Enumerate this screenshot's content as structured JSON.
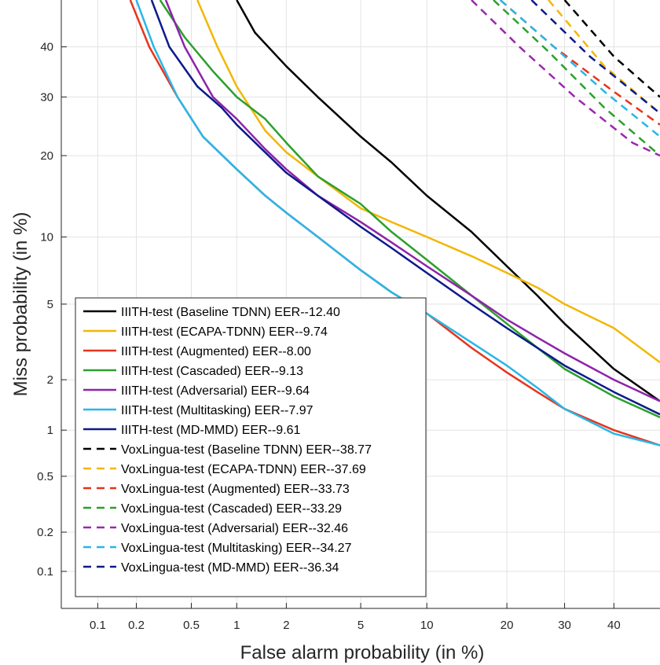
{
  "chart_data": {
    "type": "line",
    "plot_kind": "DET curve",
    "xlabel": "False alarm probability (in %)",
    "ylabel": "Miss probability (in %)",
    "x_scale": "probit",
    "y_scale": "probit",
    "xlim": [
      0.05,
      50
    ],
    "ylim": [
      0.05,
      50
    ],
    "x_ticks": [
      0.1,
      0.2,
      0.5,
      1,
      2,
      5,
      10,
      20,
      30,
      40
    ],
    "x_tick_labels": [
      "0.1",
      "0.2",
      "0.5",
      "1",
      "2",
      "5",
      "10",
      "20",
      "30",
      "40"
    ],
    "y_ticks": [
      0.1,
      0.2,
      0.5,
      1,
      2,
      5,
      10,
      20,
      30,
      40
    ],
    "y_tick_labels": [
      "0.1",
      "0.2",
      "0.5",
      "1",
      "2",
      "5",
      "10",
      "20",
      "30",
      "40"
    ],
    "grid": true,
    "legend_position": "bottom-left",
    "series": [
      {
        "name": "IIITH-test (Baseline TDNN) EER--12.40",
        "color": "#000000",
        "dash": false,
        "points": [
          [
            1,
            50
          ],
          [
            1.3,
            43
          ],
          [
            2,
            36
          ],
          [
            3,
            30
          ],
          [
            5,
            23
          ],
          [
            7,
            19
          ],
          [
            10,
            14.5
          ],
          [
            15,
            10.5
          ],
          [
            20,
            7.5
          ],
          [
            25,
            5.5
          ],
          [
            30,
            4
          ],
          [
            40,
            2.3
          ],
          [
            50,
            1.5
          ]
        ]
      },
      {
        "name": "IIITH-test (ECAPA-TDNN) EER--9.74",
        "color": "#f2b705",
        "dash": false,
        "points": [
          [
            0.55,
            50
          ],
          [
            0.75,
            40
          ],
          [
            1,
            32
          ],
          [
            1.5,
            24
          ],
          [
            2,
            20.5
          ],
          [
            3,
            17
          ],
          [
            5,
            13
          ],
          [
            7,
            11.5
          ],
          [
            10,
            10
          ],
          [
            15,
            8.3
          ],
          [
            20,
            7
          ],
          [
            25,
            6
          ],
          [
            30,
            5
          ],
          [
            40,
            3.8
          ],
          [
            50,
            2.5
          ]
        ]
      },
      {
        "name": "IIITH-test (Augmented) EER--8.00",
        "color": "#e8341c",
        "dash": false,
        "points": [
          [
            0.18,
            50
          ],
          [
            0.25,
            40
          ],
          [
            0.4,
            30
          ],
          [
            0.6,
            23
          ],
          [
            1,
            18
          ],
          [
            1.5,
            14.5
          ],
          [
            2,
            12.5
          ],
          [
            3,
            10
          ],
          [
            5,
            7.2
          ],
          [
            7,
            5.7
          ],
          [
            10,
            4.5
          ],
          [
            15,
            3
          ],
          [
            20,
            2.2
          ],
          [
            25,
            1.7
          ],
          [
            30,
            1.35
          ],
          [
            40,
            1.0
          ],
          [
            50,
            0.8
          ]
        ]
      },
      {
        "name": "IIITH-test (Cascaded) EER--9.13",
        "color": "#2ca02c",
        "dash": false,
        "points": [
          [
            0.3,
            50
          ],
          [
            0.45,
            42
          ],
          [
            0.7,
            35
          ],
          [
            1,
            30
          ],
          [
            1.5,
            26
          ],
          [
            2,
            22
          ],
          [
            3,
            17
          ],
          [
            5,
            13.5
          ],
          [
            7,
            10.5
          ],
          [
            10,
            8
          ],
          [
            15,
            5.5
          ],
          [
            20,
            4
          ],
          [
            25,
            3
          ],
          [
            30,
            2.3
          ],
          [
            40,
            1.6
          ],
          [
            50,
            1.2
          ]
        ]
      },
      {
        "name": "IIITH-test (Adversarial) EER--9.64",
        "color": "#8e24aa",
        "dash": false,
        "points": [
          [
            0.33,
            50
          ],
          [
            0.45,
            40
          ],
          [
            0.7,
            30
          ],
          [
            1,
            26
          ],
          [
            1.5,
            21
          ],
          [
            2,
            18
          ],
          [
            3,
            14.5
          ],
          [
            5,
            11.5
          ],
          [
            7,
            9.5
          ],
          [
            10,
            7.5
          ],
          [
            15,
            5.5
          ],
          [
            20,
            4.2
          ],
          [
            25,
            3.4
          ],
          [
            30,
            2.8
          ],
          [
            40,
            2.0
          ],
          [
            50,
            1.5
          ]
        ]
      },
      {
        "name": "IIITH-test (Multitasking) EER--7.97",
        "color": "#29b6e8",
        "dash": false,
        "points": [
          [
            0.2,
            50
          ],
          [
            0.27,
            40
          ],
          [
            0.4,
            30
          ],
          [
            0.6,
            23
          ],
          [
            1,
            18
          ],
          [
            1.5,
            14.5
          ],
          [
            2,
            12.5
          ],
          [
            3,
            10
          ],
          [
            5,
            7.2
          ],
          [
            7,
            5.7
          ],
          [
            10,
            4.5
          ],
          [
            15,
            3.2
          ],
          [
            20,
            2.4
          ],
          [
            25,
            1.8
          ],
          [
            30,
            1.35
          ],
          [
            40,
            0.95
          ],
          [
            50,
            0.8
          ]
        ]
      },
      {
        "name": "IIITH-test (MD-MMD) EER--9.61",
        "color": "#0d1a8c",
        "dash": false,
        "points": [
          [
            0.26,
            50
          ],
          [
            0.35,
            40
          ],
          [
            0.55,
            32
          ],
          [
            0.8,
            28
          ],
          [
            1,
            25
          ],
          [
            1.5,
            20.5
          ],
          [
            2,
            17.5
          ],
          [
            3,
            14.5
          ],
          [
            5,
            11
          ],
          [
            7,
            9
          ],
          [
            10,
            7
          ],
          [
            15,
            5
          ],
          [
            20,
            3.8
          ],
          [
            25,
            3
          ],
          [
            30,
            2.4
          ],
          [
            40,
            1.7
          ],
          [
            50,
            1.25
          ]
        ]
      },
      {
        "name": "VoxLingua-test (Baseline TDNN) EER--38.77",
        "color": "#000000",
        "dash": true,
        "points": [
          [
            30,
            50
          ],
          [
            40,
            38
          ],
          [
            50,
            30
          ]
        ]
      },
      {
        "name": "VoxLingua-test (ECAPA-TDNN) EER--37.69",
        "color": "#f2b705",
        "dash": true,
        "points": [
          [
            27,
            50
          ],
          [
            38,
            36
          ],
          [
            50,
            27
          ]
        ]
      },
      {
        "name": "VoxLingua-test (Augmented) EER--33.73",
        "color": "#e8341c",
        "dash": true,
        "points": [
          [
            19,
            50
          ],
          [
            28,
            40
          ],
          [
            40,
            31
          ],
          [
            50,
            25
          ]
        ]
      },
      {
        "name": "VoxLingua-test (Cascaded) EER--33.29",
        "color": "#2ca02c",
        "dash": true,
        "points": [
          [
            18,
            50
          ],
          [
            27,
            39
          ],
          [
            38,
            28
          ],
          [
            50,
            20
          ]
        ]
      },
      {
        "name": "VoxLingua-test (Adversarial) EER--32.46",
        "color": "#9c27b0",
        "dash": true,
        "points": [
          [
            15,
            50
          ],
          [
            22,
            40
          ],
          [
            32,
            30
          ],
          [
            44,
            22
          ],
          [
            50,
            20
          ]
        ]
      },
      {
        "name": "VoxLingua-test (Multitasking) EER--34.27",
        "color": "#29b6e8",
        "dash": true,
        "points": [
          [
            19,
            50
          ],
          [
            28,
            40
          ],
          [
            38,
            31
          ],
          [
            50,
            23
          ]
        ]
      },
      {
        "name": "VoxLingua-test (MD-MMD) EER--36.34",
        "color": "#0d1a8c",
        "dash": true,
        "points": [
          [
            24,
            50
          ],
          [
            35,
            38
          ],
          [
            50,
            27
          ]
        ]
      }
    ]
  }
}
